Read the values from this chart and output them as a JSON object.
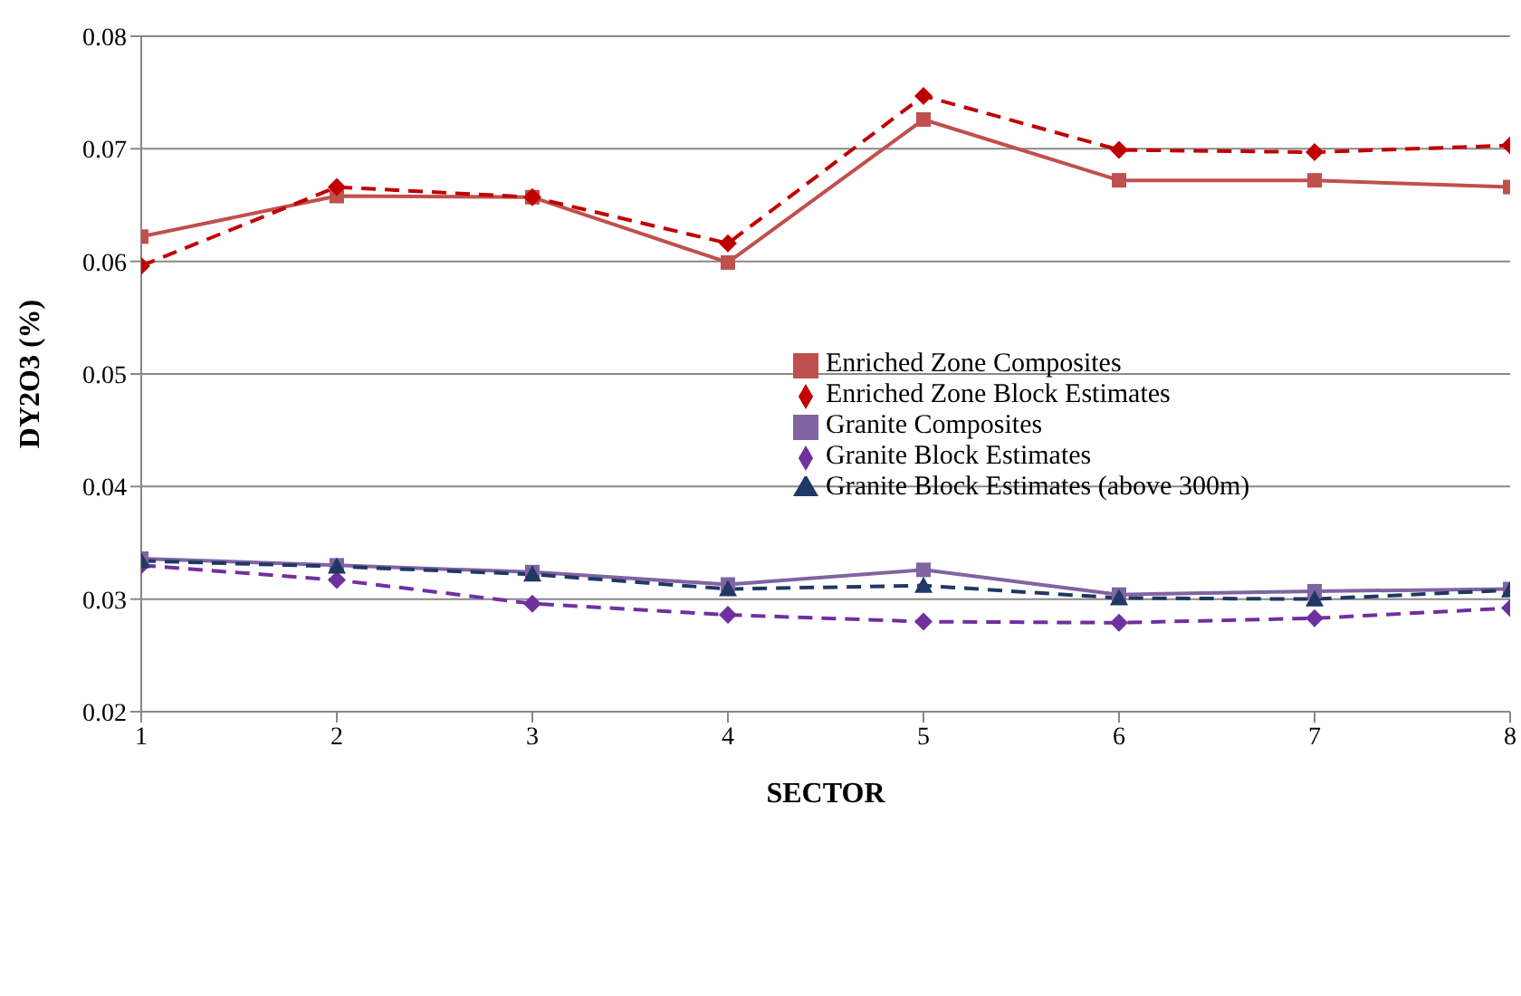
{
  "chart_data": {
    "type": "line",
    "xlabel": "SECTOR",
    "ylabel": "DY2O3 (%)",
    "x": [
      1,
      2,
      3,
      4,
      5,
      6,
      7,
      8
    ],
    "xlim": [
      1,
      8
    ],
    "xticks": [
      1,
      2,
      3,
      4,
      5,
      6,
      7,
      8
    ],
    "ylim": [
      0.02,
      0.08
    ],
    "yticks": [
      0.02,
      0.03,
      0.04,
      0.05,
      0.06,
      0.07,
      0.08
    ],
    "grid": "y",
    "legend": "right",
    "series": [
      {
        "name": "Enriched Zone Composites",
        "color": "#c0504d",
        "marker": "square",
        "line_style": "solid",
        "values": [
          0.0622,
          0.0658,
          0.0657,
          0.0599,
          0.0726,
          0.0672,
          0.0672,
          0.0666
        ]
      },
      {
        "name": "Enriched Zone Block Estimates",
        "color": "#c00000",
        "marker": "diamond",
        "line_style": "dashed",
        "values": [
          0.0596,
          0.0666,
          0.0657,
          0.0616,
          0.0747,
          0.0699,
          0.0697,
          0.0703
        ]
      },
      {
        "name": "Granite Composites",
        "color": "#8064a2",
        "marker": "square",
        "line_style": "solid",
        "values": [
          0.0336,
          0.033,
          0.0324,
          0.0313,
          0.0326,
          0.0304,
          0.0307,
          0.0309
        ]
      },
      {
        "name": "Granite Block Estimates",
        "color": "#7030a0",
        "marker": "diamond",
        "line_style": "dashed",
        "values": [
          0.033,
          0.0317,
          0.0296,
          0.0286,
          0.028,
          0.0279,
          0.0283,
          0.0292
        ]
      },
      {
        "name": "Granite Block Estimates (above 300m)",
        "color": "#1f3864",
        "marker": "triangle",
        "line_style": "dashed",
        "values": [
          0.0334,
          0.0329,
          0.0322,
          0.0309,
          0.0312,
          0.0301,
          0.03,
          0.0308
        ]
      }
    ]
  }
}
